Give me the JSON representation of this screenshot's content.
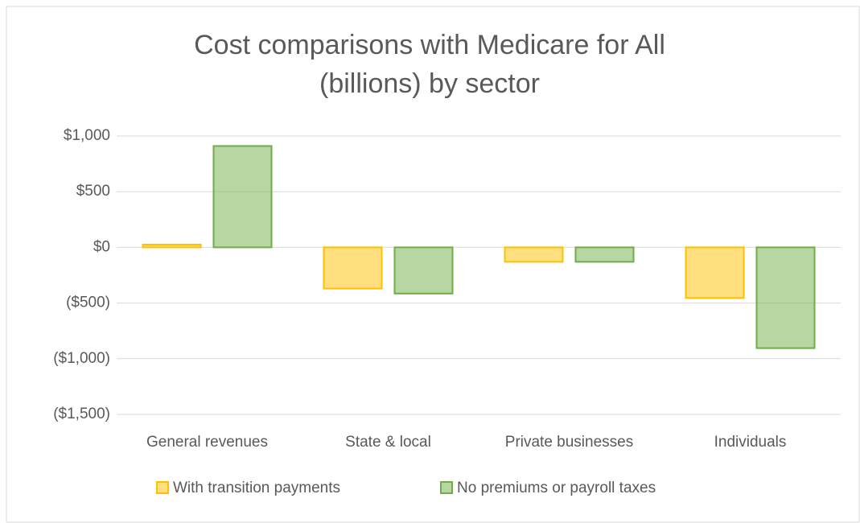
{
  "chart_data": {
    "type": "bar",
    "title": [
      "Cost comparisons with Medicare for All",
      "(billions) by sector"
    ],
    "categories": [
      "General revenues",
      "State & local",
      "Private businesses",
      "Individuals"
    ],
    "series": [
      {
        "name": "With transition payments",
        "color": "#ffc000",
        "values": [
          25,
          -370,
          -130,
          -455
        ]
      },
      {
        "name": "No premiums or payroll taxes",
        "color": "#70ad47",
        "values": [
          910,
          -415,
          -130,
          -905
        ]
      }
    ],
    "ylim": [
      -1500,
      1000
    ],
    "yticks": [
      {
        "value": -1500,
        "label": "($1,500)"
      },
      {
        "value": -1000,
        "label": "($1,000)"
      },
      {
        "value": -500,
        "label": "($500)"
      },
      {
        "value": 0,
        "label": "$0"
      },
      {
        "value": 500,
        "label": "$500"
      },
      {
        "value": 1000,
        "label": "$1,000"
      }
    ],
    "grid": true,
    "legend": "bottom"
  }
}
